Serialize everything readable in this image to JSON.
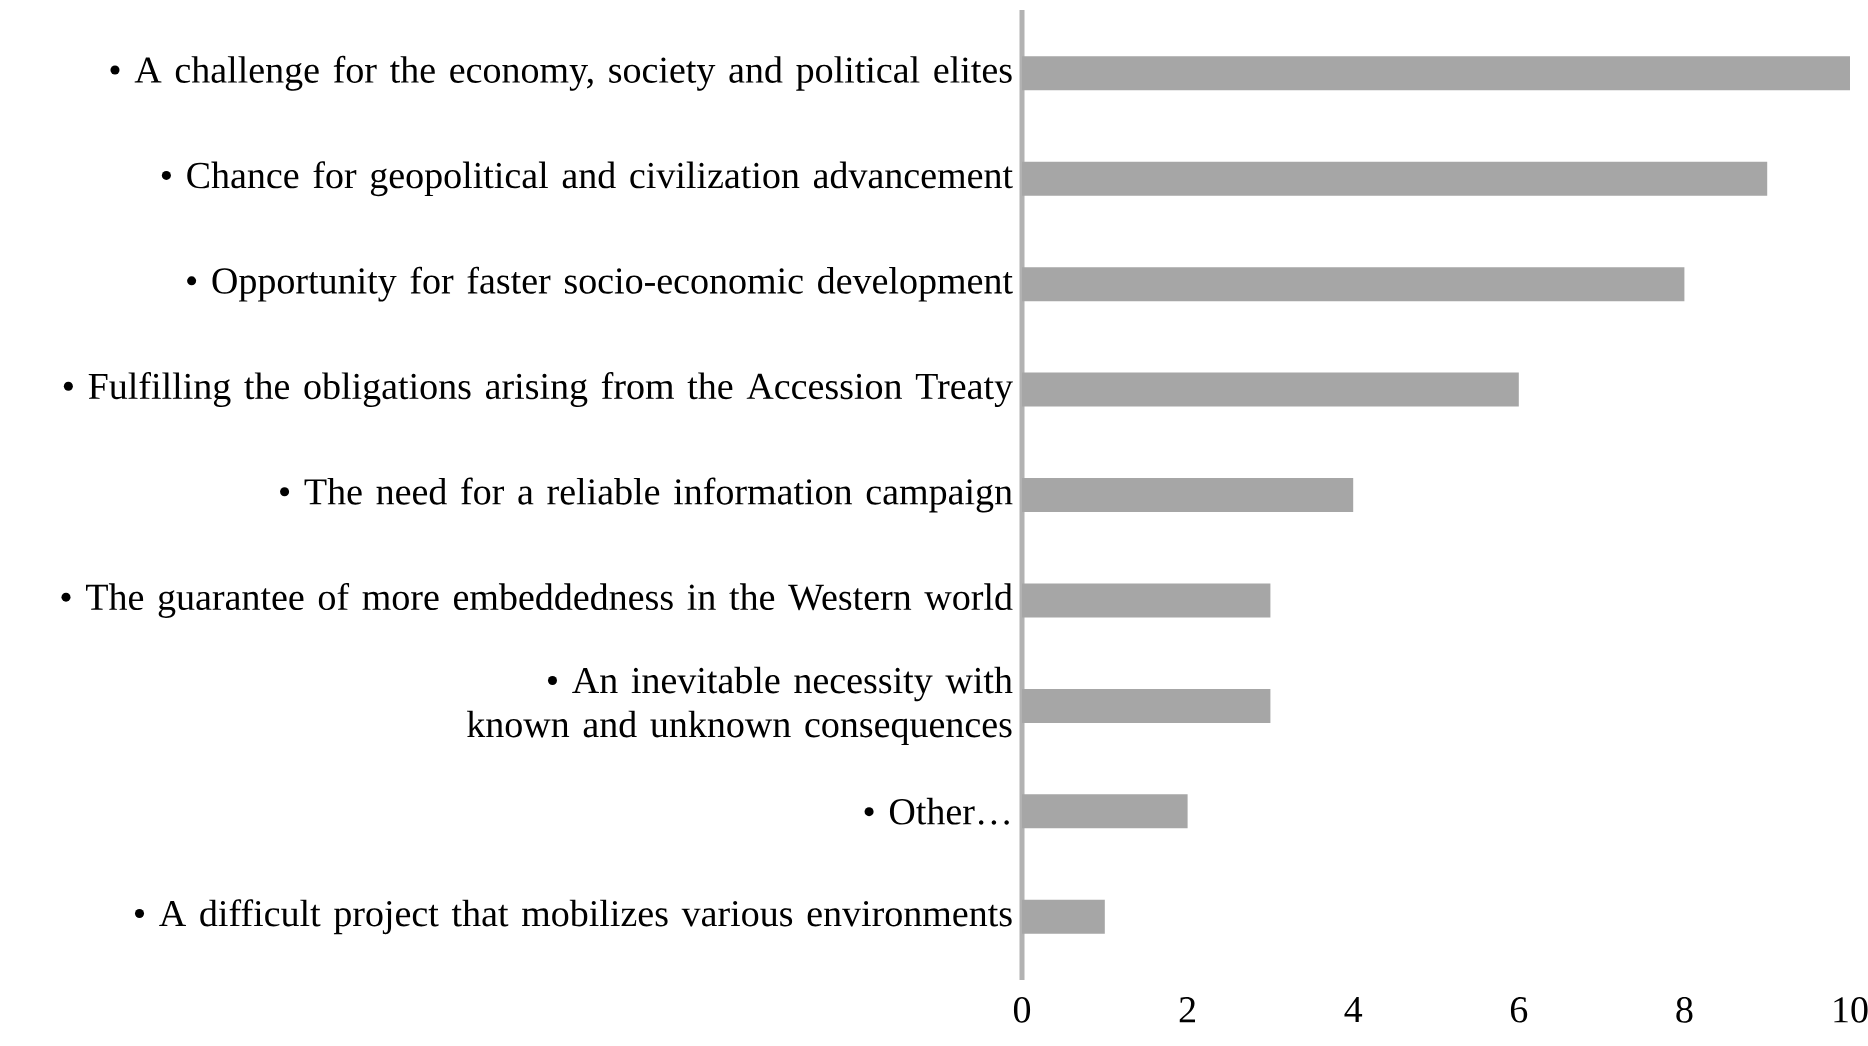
{
  "chart_data": {
    "type": "bar",
    "orientation": "horizontal",
    "categories": [
      "• A challenge for the economy, society and political elites",
      "• Chance for geopolitical and civilization advancement",
      "• Opportunity for faster socio-economic development",
      "• Fulfilling the obligations arising from the Accession Treaty",
      "• The need for a reliable information campaign",
      "• The guarantee of more embeddedness in the Western world",
      "• An inevitable necessity with known and unknown consequences",
      "• Other…",
      "• A difficult project that mobilizes various environments"
    ],
    "values": [
      10,
      9,
      8,
      6,
      4,
      3,
      3,
      2,
      1
    ],
    "color": "#a6a6a6",
    "xlim": [
      0,
      10
    ],
    "xticks": [
      0,
      2,
      4,
      6,
      8,
      10
    ]
  }
}
